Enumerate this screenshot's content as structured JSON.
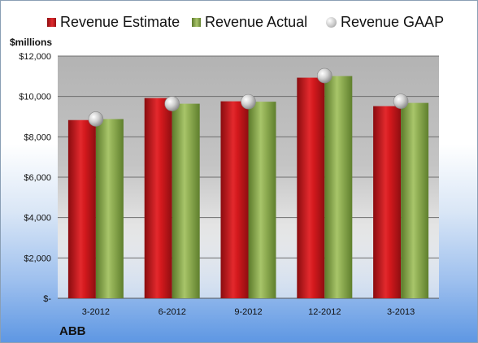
{
  "legend": {
    "estimate": "Revenue Estimate",
    "actual": "Revenue Actual",
    "gaap": "Revenue GAAP"
  },
  "unit_label": "$millions",
  "company": "ABB",
  "chart_data": {
    "type": "bar",
    "categories": [
      "3-2012",
      "6-2012",
      "9-2012",
      "12-2012",
      "3-2013"
    ],
    "series": [
      {
        "name": "Revenue Estimate",
        "values": [
          8830,
          9920,
          9760,
          10930,
          9520
        ],
        "color": "#c8191d"
      },
      {
        "name": "Revenue Actual",
        "values": [
          8880,
          9640,
          9740,
          11010,
          9680
        ],
        "color": "#8fae4e"
      },
      {
        "name": "Revenue GAAP",
        "values": [
          8880,
          9640,
          9740,
          11030,
          9760
        ],
        "marker": "sphere",
        "color": "#c0c0c0"
      }
    ],
    "yticks": [
      "$-",
      "$2,000",
      "$4,000",
      "$6,000",
      "$8,000",
      "$10,000",
      "$12,000"
    ],
    "ylim": [
      0,
      12000
    ],
    "grid": true,
    "legend_position": "top"
  }
}
